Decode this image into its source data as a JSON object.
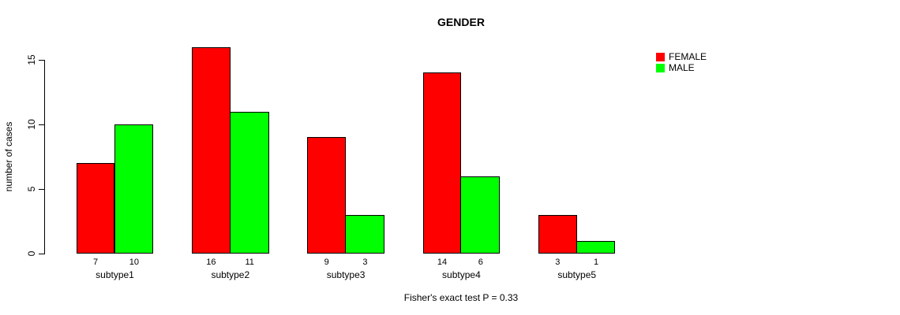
{
  "chart_data": {
    "type": "bar",
    "title": "GENDER",
    "categories": [
      "subtype1",
      "subtype2",
      "subtype3",
      "subtype4",
      "subtype5"
    ],
    "series": [
      {
        "name": "FEMALE",
        "color": "#ff0000",
        "values": [
          7,
          16,
          9,
          14,
          3
        ]
      },
      {
        "name": "MALE",
        "color": "#00ff00",
        "values": [
          10,
          11,
          3,
          6,
          1
        ]
      }
    ],
    "xlabel": "",
    "ylabel": "number of cases",
    "ylim": [
      0,
      15
    ],
    "yticks": [
      0,
      5,
      10,
      15
    ],
    "grid": false,
    "bar_value_labels_shown": true,
    "legend_position": "top-right",
    "legend_entries": [
      "FEMALE",
      "MALE"
    ],
    "annotation": "Fisher's exact test P = 0.33",
    "bar_border_color": "#000000",
    "background_color": "#ffffff"
  }
}
